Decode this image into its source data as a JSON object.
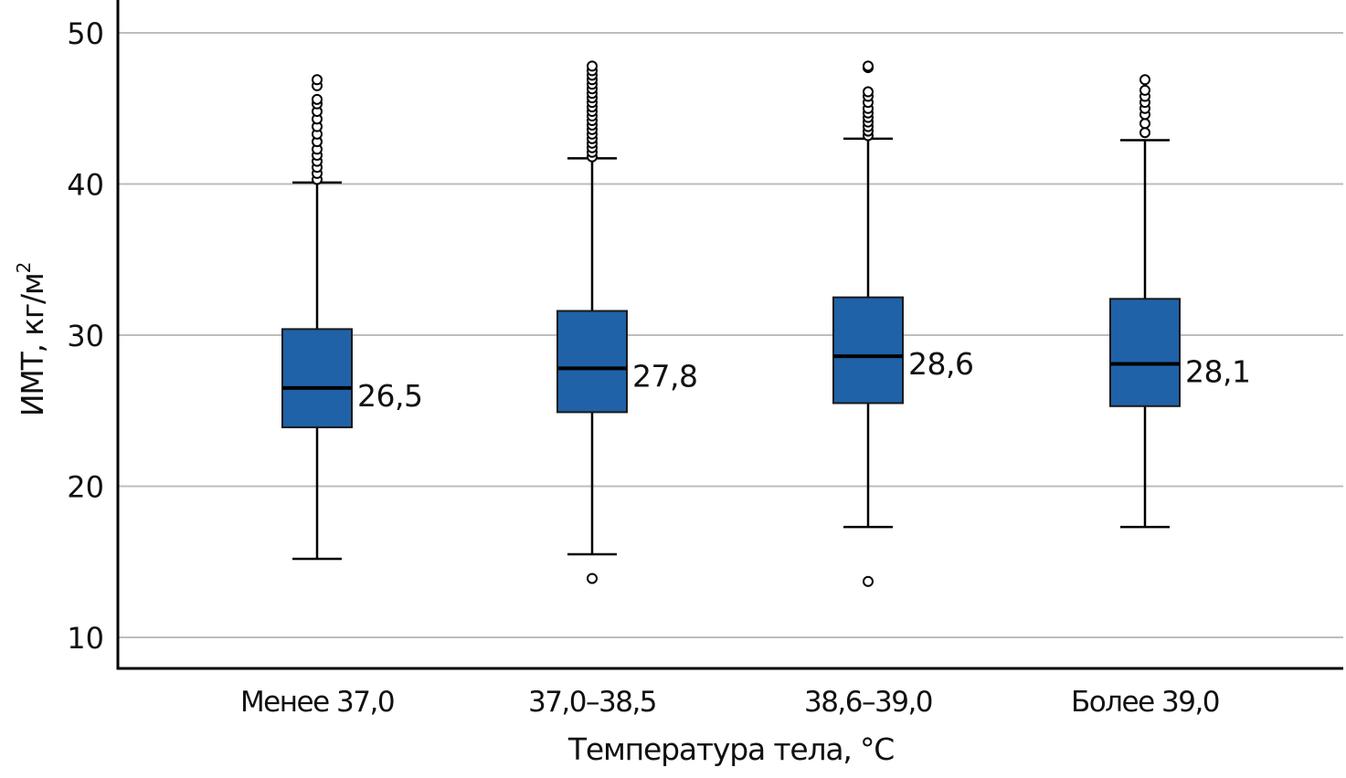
{
  "chart_data": {
    "type": "box",
    "title": "",
    "xlabel": "Температура тела, °C",
    "ylabel_main": "ИМТ, кг/м",
    "ylabel_sup": "2",
    "ylim": [
      8,
      52
    ],
    "yticks": [
      10,
      20,
      30,
      40,
      50
    ],
    "ytick_labels": [
      "10",
      "20",
      "30",
      "40",
      "50"
    ],
    "grid": "horizontal",
    "categories": [
      "Менее 37,0",
      "37,0–38,5",
      "38,6–39,0",
      "Более 39,0"
    ],
    "box_color": "#1f62a8",
    "groups": [
      {
        "category": "Менее 37,0",
        "median": 26.5,
        "median_label": "26,5",
        "q1": 23.9,
        "q3": 30.4,
        "whisker_low": 15.2,
        "whisker_high": 40.1,
        "outliers": [
          40.3,
          40.7,
          41.1,
          41.5,
          41.9,
          42.3,
          42.8,
          43.3,
          43.8,
          44.3,
          44.8,
          45.3,
          45.6,
          46.5,
          46.9
        ]
      },
      {
        "category": "37,0–38,5",
        "median": 27.8,
        "median_label": "27,8",
        "q1": 24.9,
        "q3": 31.6,
        "whisker_low": 15.5,
        "whisker_high": 41.7,
        "outliers": [
          13.9,
          41.8,
          42.1,
          42.4,
          42.7,
          43.0,
          43.3,
          43.6,
          43.9,
          44.2,
          44.5,
          44.8,
          45.1,
          45.4,
          45.7,
          46.0,
          46.3,
          46.6,
          46.9,
          47.2,
          47.5,
          47.8
        ]
      },
      {
        "category": "38,6–39,0",
        "median": 28.6,
        "median_label": "28,6",
        "q1": 25.5,
        "q3": 32.5,
        "whisker_low": 17.3,
        "whisker_high": 43.0,
        "outliers": [
          13.7,
          43.2,
          43.5,
          43.8,
          44.1,
          44.4,
          44.7,
          45.0,
          45.4,
          45.8,
          46.1,
          47.7,
          47.8
        ]
      },
      {
        "category": "Более 39,0",
        "median": 28.1,
        "median_label": "28,1",
        "q1": 25.3,
        "q3": 32.4,
        "whisker_low": 17.3,
        "whisker_high": 42.9,
        "outliers": [
          43.4,
          44.0,
          44.6,
          45.0,
          45.4,
          45.8,
          46.2,
          46.9
        ]
      }
    ]
  }
}
